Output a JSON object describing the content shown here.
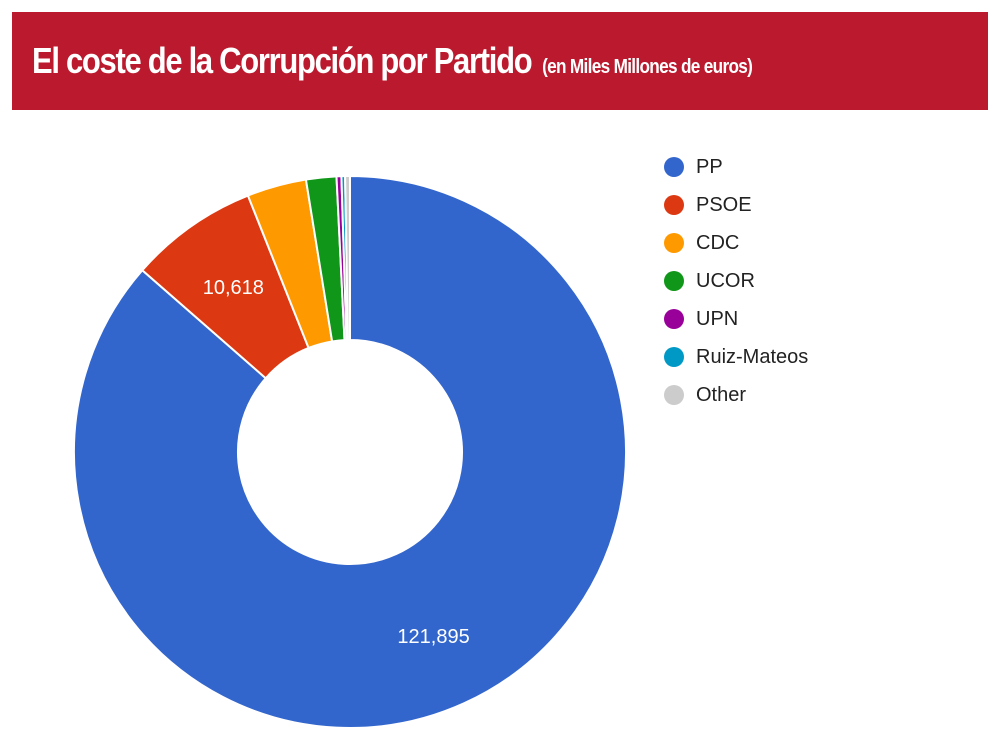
{
  "header": {
    "title": "El coste de la Corrupción por Partido",
    "subtitle": "(en Miles Millones de euros)",
    "background_color": "#bb1a2e"
  },
  "chart_data": {
    "type": "pie",
    "donut": true,
    "title": "El coste de la Corrupción por Partido (en Miles Millones de euros)",
    "legend_position": "right",
    "slices": [
      {
        "label": "PP",
        "value": 121895,
        "color": "#3366cc",
        "data_label": "121,895"
      },
      {
        "label": "PSOE",
        "value": 10618,
        "color": "#dc3912",
        "data_label": "10,618"
      },
      {
        "label": "CDC",
        "value": 4900,
        "color": "#ff9900",
        "data_label": ""
      },
      {
        "label": "UCOR",
        "value": 2500,
        "color": "#109618",
        "data_label": ""
      },
      {
        "label": "UPN",
        "value": 400,
        "color": "#990099",
        "data_label": ""
      },
      {
        "label": "Ruiz-Mateos",
        "value": 300,
        "color": "#0099c6",
        "data_label": ""
      },
      {
        "label": "Other",
        "value": 400,
        "color": "#cccccc",
        "data_label": ""
      }
    ]
  }
}
